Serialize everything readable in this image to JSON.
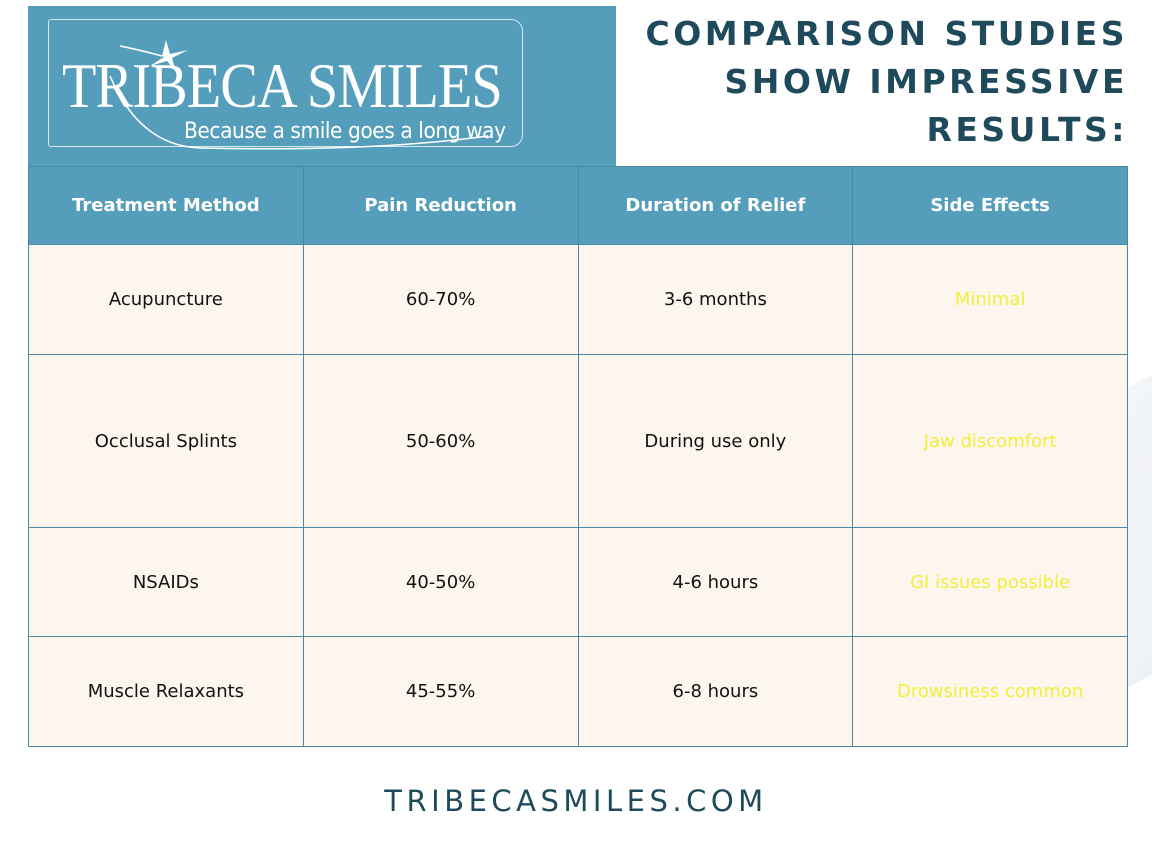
{
  "logo": {
    "name_main": "TRIBECA SMILES",
    "tagline": "Because a smile goes a long way"
  },
  "headline": {
    "lines": [
      "COMPARISON STUDIES",
      "SHOW IMPRESSIVE",
      "RESULTS:"
    ]
  },
  "table": {
    "headers": [
      "Treatment Method",
      "Pain Reduction",
      "Duration of Relief",
      "Side Effects"
    ],
    "rows": [
      {
        "method": "Acupuncture",
        "pain": "60-70%",
        "duration": "3-6 months",
        "side": "Minimal"
      },
      {
        "method": "Occlusal Splints",
        "pain": "50-60%",
        "duration": "During use only",
        "side": "Jaw discomfort"
      },
      {
        "method": "NSAIDs",
        "pain": "40-50%",
        "duration": "4-6 hours",
        "side": "GI issues possible"
      },
      {
        "method": "Muscle Relaxants",
        "pain": "45-55%",
        "duration": "6-8 hours",
        "side": "Drowsiness common"
      }
    ]
  },
  "footer": {
    "url": "TRIBECASMILES.COM"
  },
  "colors": {
    "header_bg": "#559ebb",
    "cell_bg": "#fdf6ee",
    "headline": "#1f4a5c",
    "side_effects_text": "#f2ee3a"
  }
}
